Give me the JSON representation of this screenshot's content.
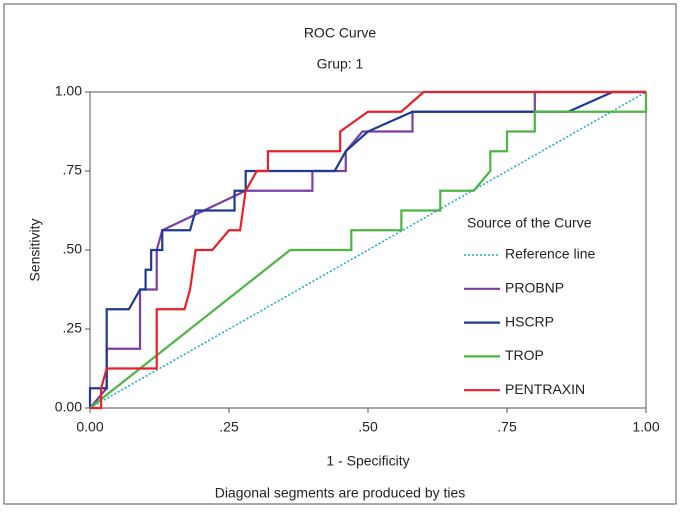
{
  "chart_data": {
    "type": "line",
    "title": "ROC Curve",
    "subtitle": "Grup: 1",
    "xlabel": "1 - Specificity",
    "ylabel": "Sensitivity",
    "note": "Diagonal segments are produced by ties",
    "legend_title": "Source of the Curve",
    "legend": "right",
    "xlim": [
      0,
      1
    ],
    "ylim": [
      0,
      1
    ],
    "xticks": [
      {
        "value": 0,
        "label": "0.00"
      },
      {
        "value": 0.25,
        "label": ".25"
      },
      {
        "value": 0.5,
        "label": ".50"
      },
      {
        "value": 0.75,
        "label": ".75"
      },
      {
        "value": 1,
        "label": "1.00"
      }
    ],
    "yticks": [
      {
        "value": 0,
        "label": "0.00"
      },
      {
        "value": 0.25,
        "label": ".25"
      },
      {
        "value": 0.5,
        "label": ".50"
      },
      {
        "value": 0.75,
        "label": ".75"
      },
      {
        "value": 1,
        "label": "1.00"
      }
    ],
    "series": [
      {
        "name": "Reference line",
        "color": "#1eaad2",
        "dash": true,
        "x": [
          0,
          1
        ],
        "values": [
          0,
          1
        ]
      },
      {
        "name": "PROBNP",
        "color": "#7b3fa0",
        "x": [
          0,
          0.03,
          0.03,
          0.09,
          0.09,
          0.12,
          0.12,
          0.13,
          0.28,
          0.28,
          0.4,
          0.4,
          0.46,
          0.46,
          0.49,
          0.58,
          0.58,
          0.8,
          0.8,
          1
        ],
        "values": [
          0,
          0.0625,
          0.1875,
          0.1875,
          0.375,
          0.375,
          0.5,
          0.5625,
          0.6875,
          0.6875,
          0.6875,
          0.75,
          0.75,
          0.8125,
          0.875,
          0.875,
          0.9375,
          0.9375,
          1,
          1
        ]
      },
      {
        "name": "HSCRP",
        "color": "#1f3a93",
        "x": [
          0,
          0,
          0.03,
          0.03,
          0.07,
          0.09,
          0.1,
          0.1,
          0.11,
          0.11,
          0.13,
          0.13,
          0.15,
          0.18,
          0.19,
          0.26,
          0.26,
          0.28,
          0.28,
          0.44,
          0.46,
          0.5,
          0.58,
          0.86,
          0.94,
          1
        ],
        "values": [
          0,
          0.0625,
          0.0625,
          0.3125,
          0.3125,
          0.375,
          0.375,
          0.4375,
          0.4375,
          0.5,
          0.5,
          0.5625,
          0.5625,
          0.5625,
          0.625,
          0.625,
          0.6875,
          0.6875,
          0.75,
          0.75,
          0.8125,
          0.875,
          0.9375,
          0.9375,
          1,
          1
        ]
      },
      {
        "name": "TROP",
        "color": "#4cb544",
        "x": [
          0,
          0.36,
          0.47,
          0.47,
          0.56,
          0.56,
          0.63,
          0.63,
          0.69,
          0.72,
          0.72,
          0.75,
          0.75,
          0.8,
          0.8,
          1,
          1
        ],
        "values": [
          0,
          0.5,
          0.5,
          0.5625,
          0.5625,
          0.625,
          0.625,
          0.6875,
          0.6875,
          0.75,
          0.8125,
          0.8125,
          0.875,
          0.875,
          0.9375,
          0.9375,
          1
        ]
      },
      {
        "name": "PENTRAXIN",
        "color": "#e8202a",
        "x": [
          0,
          0.02,
          0.02,
          0.03,
          0.12,
          0.12,
          0.17,
          0.18,
          0.19,
          0.22,
          0.25,
          0.27,
          0.28,
          0.3,
          0.32,
          0.32,
          0.45,
          0.45,
          0.5,
          0.56,
          0.6,
          1
        ],
        "values": [
          0,
          0,
          0.0625,
          0.125,
          0.125,
          0.3125,
          0.3125,
          0.375,
          0.5,
          0.5,
          0.5625,
          0.5625,
          0.6875,
          0.75,
          0.75,
          0.8125,
          0.8125,
          0.875,
          0.9375,
          0.9375,
          1,
          1
        ]
      }
    ]
  }
}
